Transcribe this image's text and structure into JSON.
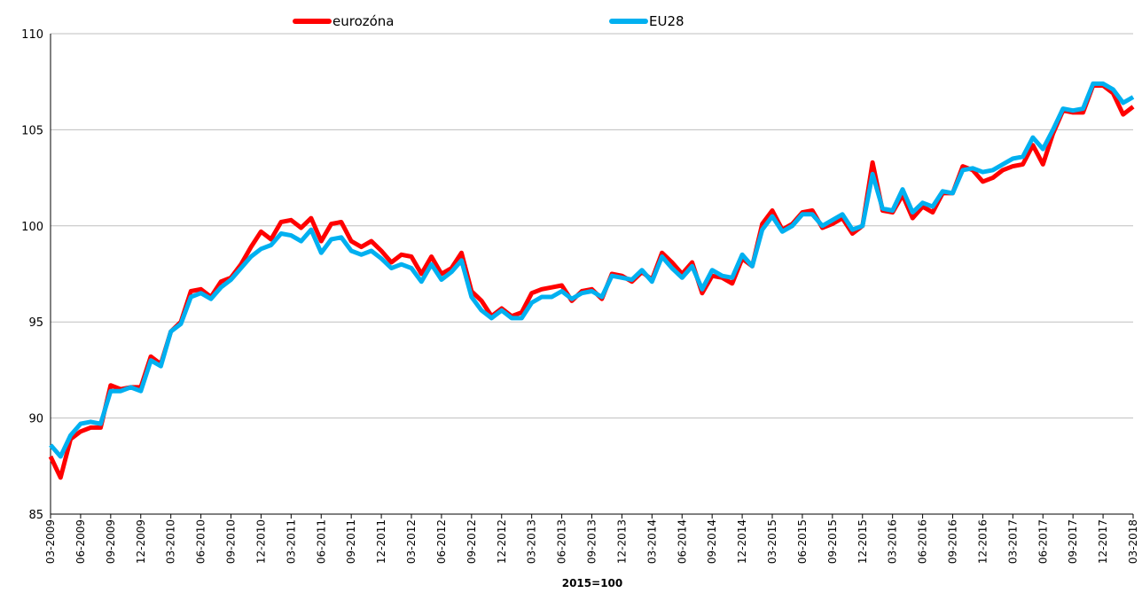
{
  "chart_data": {
    "type": "line",
    "x_label": "2015=100",
    "categories": [
      "03-2009",
      null,
      null,
      "06-2009",
      null,
      null,
      "09-2009",
      null,
      null,
      "12-2009",
      null,
      null,
      "03-2010",
      null,
      null,
      "06-2010",
      null,
      null,
      "09-2010",
      null,
      null,
      "12-2010",
      null,
      null,
      "03-2011",
      null,
      null,
      "06-2011",
      null,
      null,
      "09-2011",
      null,
      null,
      "12-2011",
      null,
      null,
      "03-2012",
      null,
      null,
      "06-2012",
      null,
      null,
      "09-2012",
      null,
      null,
      "12-2012",
      null,
      null,
      "03-2013",
      null,
      null,
      "06-2013",
      null,
      null,
      "09-2013",
      null,
      null,
      "12-2013",
      null,
      null,
      "03-2014",
      null,
      null,
      "06-2014",
      null,
      null,
      "09-2014",
      null,
      null,
      "12-2014",
      null,
      null,
      "03-2015",
      null,
      null,
      "06-2015",
      null,
      null,
      "09-2015",
      null,
      null,
      "12-2015",
      null,
      null,
      "03-2016",
      null,
      null,
      "06-2016",
      null,
      null,
      "09-2016",
      null,
      null,
      "12-2016",
      null,
      null,
      "03-2017",
      null,
      null,
      "06-2017",
      null,
      null,
      "09-2017",
      null,
      null,
      "12-2017",
      null,
      null,
      "03-2018"
    ],
    "series": [
      {
        "name": "eurozóna",
        "color": "#ff0000",
        "values": [
          88.0,
          86.9,
          88.9,
          89.3,
          89.5,
          89.5,
          91.7,
          91.5,
          91.6,
          91.6,
          93.2,
          92.8,
          94.5,
          95.0,
          96.6,
          96.7,
          96.3,
          97.1,
          97.3,
          98.0,
          98.9,
          99.7,
          99.3,
          100.2,
          100.3,
          99.9,
          100.4,
          99.2,
          100.1,
          100.2,
          99.2,
          98.9,
          99.2,
          98.7,
          98.1,
          98.5,
          98.4,
          97.5,
          98.4,
          97.5,
          97.8,
          98.6,
          96.6,
          96.1,
          95.3,
          95.7,
          95.3,
          95.5,
          96.5,
          96.7,
          96.8,
          96.9,
          96.1,
          96.6,
          96.7,
          96.2,
          97.5,
          97.4,
          97.1,
          97.6,
          97.2,
          98.6,
          98.1,
          97.5,
          98.1,
          96.5,
          97.4,
          97.3,
          97.0,
          98.3,
          97.9,
          100.1,
          100.8,
          99.8,
          100.1,
          100.7,
          100.8,
          99.9,
          100.1,
          100.4,
          99.6,
          100.0,
          103.3,
          100.8,
          100.7,
          101.6,
          100.4,
          101.0,
          100.7,
          101.7,
          101.7,
          103.1,
          102.9,
          102.3,
          102.5,
          102.9,
          103.1,
          103.2,
          104.2,
          103.2,
          104.8,
          106.0,
          105.9,
          105.9,
          107.3,
          107.3,
          106.9,
          105.8,
          106.2
        ]
      },
      {
        "name": "EU28",
        "color": "#00b0f0",
        "values": [
          88.6,
          88.0,
          89.1,
          89.7,
          89.8,
          89.7,
          91.4,
          91.4,
          91.6,
          91.4,
          93.0,
          92.7,
          94.5,
          94.9,
          96.3,
          96.5,
          96.2,
          96.8,
          97.2,
          97.8,
          98.4,
          98.8,
          99.0,
          99.6,
          99.5,
          99.2,
          99.8,
          98.6,
          99.3,
          99.4,
          98.7,
          98.5,
          98.7,
          98.3,
          97.8,
          98.0,
          97.8,
          97.1,
          98.0,
          97.2,
          97.6,
          98.2,
          96.3,
          95.6,
          95.2,
          95.6,
          95.2,
          95.2,
          96.0,
          96.3,
          96.3,
          96.6,
          96.2,
          96.5,
          96.6,
          96.3,
          97.4,
          97.3,
          97.2,
          97.7,
          97.1,
          98.4,
          97.8,
          97.3,
          97.9,
          96.7,
          97.7,
          97.4,
          97.3,
          98.5,
          97.9,
          99.8,
          100.5,
          99.7,
          100.0,
          100.6,
          100.6,
          100.0,
          100.3,
          100.6,
          99.8,
          100.0,
          102.7,
          100.9,
          100.8,
          101.9,
          100.7,
          101.2,
          101.0,
          101.8,
          101.7,
          102.9,
          103.0,
          102.8,
          102.9,
          103.2,
          103.5,
          103.6,
          104.6,
          104.0,
          105.0,
          106.1,
          106.0,
          106.1,
          107.4,
          107.4,
          107.1,
          106.4,
          106.7
        ]
      }
    ],
    "ylim": [
      85,
      110
    ],
    "yticks": [
      85,
      90,
      95,
      100,
      105,
      110
    ],
    "grid": true
  }
}
